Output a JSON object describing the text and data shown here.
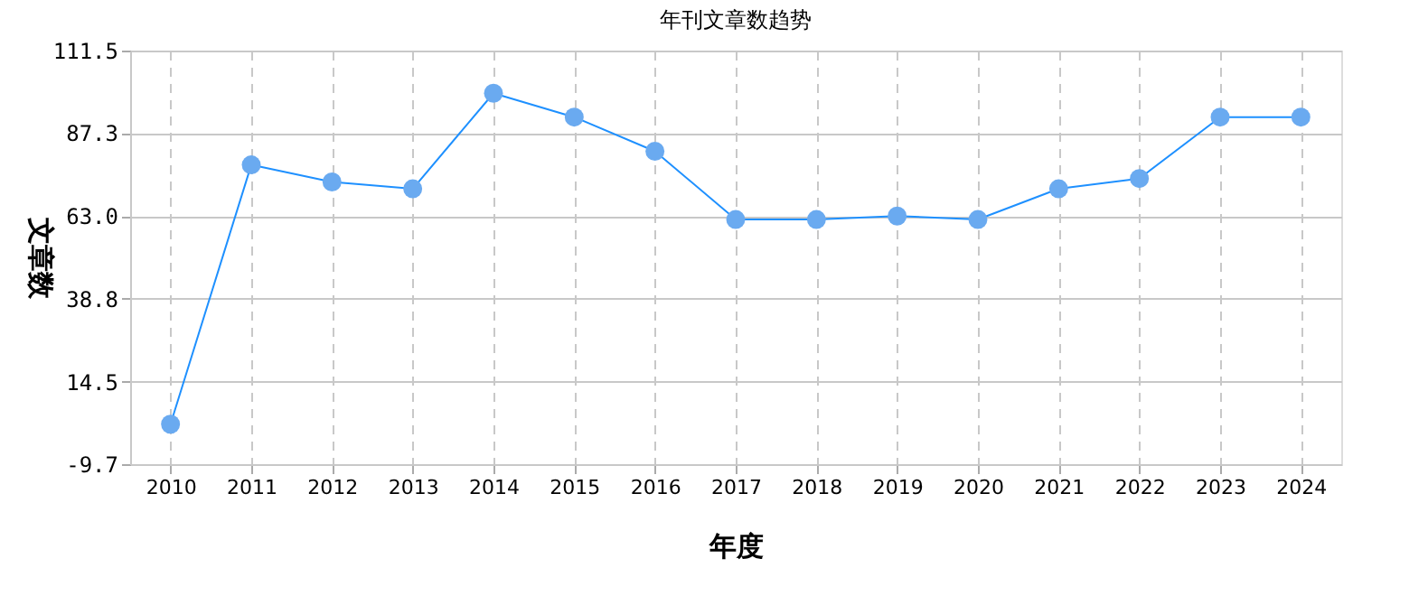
{
  "chart_data": {
    "type": "line",
    "title": "年刊文章数趋势",
    "xlabel": "年度",
    "ylabel": "文章数",
    "categories": [
      "2010",
      "2011",
      "2012",
      "2013",
      "2014",
      "2015",
      "2016",
      "2017",
      "2018",
      "2019",
      "2020",
      "2021",
      "2022",
      "2023",
      "2024"
    ],
    "series": [
      {
        "color": "#1e90ff",
        "values": [
          2,
          78,
          73,
          71,
          99,
          92,
          82,
          62,
          62,
          63,
          62,
          71,
          74,
          92,
          92
        ]
      }
    ],
    "ylim": [
      -9.7,
      111.5
    ],
    "yticks": [
      {
        "value": -9.7,
        "label": "-9.7"
      },
      {
        "value": 14.5,
        "label": "14.5"
      },
      {
        "value": 38.8,
        "label": "38.8"
      },
      {
        "value": 63.0,
        "label": "63.0"
      },
      {
        "value": 87.3,
        "label": "87.3"
      },
      {
        "value": 111.5,
        "label": "111.5"
      }
    ],
    "grid": true,
    "marker": "circle",
    "line_style": "solid"
  }
}
